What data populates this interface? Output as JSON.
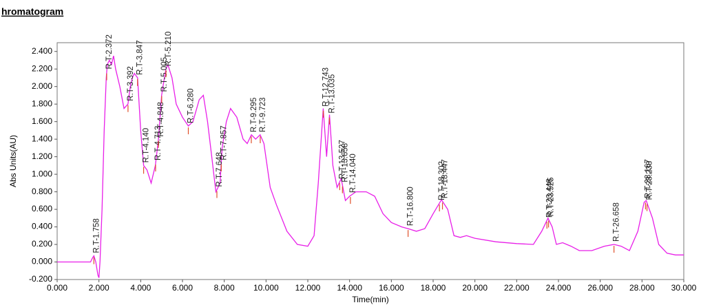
{
  "chart_data": {
    "type": "line",
    "title": "hromatogram",
    "x_label": "Time(min)",
    "y_label": "Abs Units(AU)",
    "xlim": [
      0,
      30
    ],
    "ylim": [
      -0.2,
      2.5
    ],
    "xticks": [
      {
        "value": 0,
        "label": "0.000"
      },
      {
        "value": 2,
        "label": "2.000"
      },
      {
        "value": 4,
        "label": "4.000"
      },
      {
        "value": 6,
        "label": "6.000"
      },
      {
        "value": 8,
        "label": "8.000"
      },
      {
        "value": 10,
        "label": "10.000"
      },
      {
        "value": 12,
        "label": "12.000"
      },
      {
        "value": 14,
        "label": "14.000"
      },
      {
        "value": 16,
        "label": "16.000"
      },
      {
        "value": 18,
        "label": "18.000"
      },
      {
        "value": 20,
        "label": "20.000"
      },
      {
        "value": 22,
        "label": "22.000"
      },
      {
        "value": 24,
        "label": "24.000"
      },
      {
        "value": 26,
        "label": "26.000"
      },
      {
        "value": 28,
        "label": "28.000"
      },
      {
        "value": 30,
        "label": "30.000"
      }
    ],
    "yticks": [
      {
        "value": -0.2,
        "label": "-0.200"
      },
      {
        "value": 0,
        "label": "0.000"
      },
      {
        "value": 0.2,
        "label": "0.200"
      },
      {
        "value": 0.4,
        "label": "0.400"
      },
      {
        "value": 0.6,
        "label": "0.600"
      },
      {
        "value": 0.8,
        "label": "0.800"
      },
      {
        "value": 1,
        "label": "1.000"
      },
      {
        "value": 1.2,
        "label": "1.200"
      },
      {
        "value": 1.4,
        "label": "1.400"
      },
      {
        "value": 1.6,
        "label": "1.600"
      },
      {
        "value": 1.8,
        "label": "1.800"
      },
      {
        "value": 2,
        "label": "2.000"
      },
      {
        "value": 2.2,
        "label": "2.200"
      },
      {
        "value": 2.4,
        "label": "2.400"
      }
    ],
    "x": [
      0,
      1.6,
      1.7,
      1.76,
      1.85,
      1.95,
      2.0,
      2.05,
      2.15,
      2.25,
      2.35,
      2.4,
      2.5,
      2.6,
      2.7,
      2.8,
      3.0,
      3.2,
      3.39,
      3.5,
      3.6,
      3.7,
      3.85,
      4.0,
      4.14,
      4.3,
      4.5,
      4.7,
      4.85,
      5.0,
      5.1,
      5.21,
      5.3,
      5.5,
      5.7,
      6.0,
      6.28,
      6.5,
      6.8,
      7.0,
      7.2,
      7.4,
      7.6,
      7.8,
      7.9,
      8.1,
      8.3,
      8.6,
      8.9,
      9.1,
      9.3,
      9.5,
      9.72,
      9.9,
      10.2,
      10.5,
      11.0,
      11.5,
      12.0,
      12.3,
      12.5,
      12.74,
      12.9,
      13.04,
      13.2,
      13.4,
      13.6,
      13.8,
      14.0,
      14.3,
      14.8,
      15.2,
      15.6,
      16.0,
      16.5,
      16.8,
      17.2,
      17.6,
      18.0,
      18.4,
      18.7,
      19.0,
      19.3,
      19.6,
      20.0,
      21.0,
      22.0,
      22.8,
      23.2,
      23.5,
      23.7,
      23.9,
      24.2,
      24.6,
      25.0,
      25.6,
      26.2,
      26.66,
      27.0,
      27.4,
      27.8,
      28.1,
      28.2,
      28.5,
      28.8,
      29.2,
      29.6,
      30
    ],
    "series": [
      {
        "color": "#e81ee8",
        "values": [
          0,
          0,
          0.05,
          0.07,
          0,
          -0.15,
          -0.18,
          0,
          0.6,
          1.5,
          2.1,
          2.25,
          2.3,
          2.25,
          2.35,
          2.2,
          2.0,
          1.75,
          1.8,
          2.0,
          2.1,
          2.15,
          2.1,
          1.5,
          1.1,
          1.05,
          0.9,
          1.1,
          1.4,
          1.9,
          2.05,
          2.2,
          2.25,
          2.1,
          1.8,
          1.65,
          1.55,
          1.6,
          1.85,
          1.9,
          1.6,
          1.2,
          0.8,
          0.9,
          1.3,
          1.6,
          1.75,
          1.65,
          1.4,
          1.35,
          1.45,
          1.4,
          1.45,
          1.35,
          0.85,
          0.65,
          0.35,
          0.2,
          0.18,
          0.3,
          0.9,
          1.75,
          1.2,
          1.68,
          1.1,
          0.85,
          0.95,
          0.7,
          0.75,
          0.8,
          0.8,
          0.75,
          0.55,
          0.45,
          0.4,
          0.38,
          0.35,
          0.38,
          0.55,
          0.71,
          0.6,
          0.3,
          0.28,
          0.3,
          0.27,
          0.23,
          0.21,
          0.2,
          0.35,
          0.5,
          0.4,
          0.2,
          0.22,
          0.18,
          0.13,
          0.13,
          0.18,
          0.2,
          0.18,
          0.13,
          0.35,
          0.68,
          0.7,
          0.5,
          0.2,
          0.1,
          0.08,
          0.08
        ]
      }
    ],
    "peaks": [
      {
        "label": "R.T-1.758",
        "x": 1.758
      },
      {
        "label": "R.T-2.372",
        "x": 2.372
      },
      {
        "label": "R.T-3.392",
        "x": 3.392
      },
      {
        "label": "R.T-3.847",
        "x": 3.847
      },
      {
        "label": "R.T-4.140",
        "x": 4.14
      },
      {
        "label": "R.T-4.713",
        "x": 4.713
      },
      {
        "label": "R.T-4.848",
        "x": 4.848
      },
      {
        "label": "R.T-5.005",
        "x": 5.005
      },
      {
        "label": "R.T-5.210",
        "x": 5.21
      },
      {
        "label": "R.T-6.280",
        "x": 6.28
      },
      {
        "label": "R.T-7.648",
        "x": 7.648
      },
      {
        "label": "R.T-7.857",
        "x": 7.857
      },
      {
        "label": "R.T-9.295",
        "x": 9.295
      },
      {
        "label": "R.T-9.723",
        "x": 9.723
      },
      {
        "label": "R.T-12.743",
        "x": 12.743
      },
      {
        "label": "R.T-13.035",
        "x": 13.035
      },
      {
        "label": "R.T-13.527",
        "x": 13.527
      },
      {
        "label": "R.T-13.658",
        "x": 13.658
      },
      {
        "label": "R.T-14.040",
        "x": 14.04
      },
      {
        "label": "R.T-16.800",
        "x": 16.8
      },
      {
        "label": "R.T-18.302",
        "x": 18.302
      },
      {
        "label": "R.T-18.447",
        "x": 18.447
      },
      {
        "label": "R.T-23.448",
        "x": 23.448
      },
      {
        "label": "R.T-23.525",
        "x": 23.525
      },
      {
        "label": "R.T-26.658",
        "x": 26.658
      },
      {
        "label": "R.T-28.167",
        "x": 28.167
      },
      {
        "label": "R.T-28.238",
        "x": 28.238
      }
    ]
  }
}
